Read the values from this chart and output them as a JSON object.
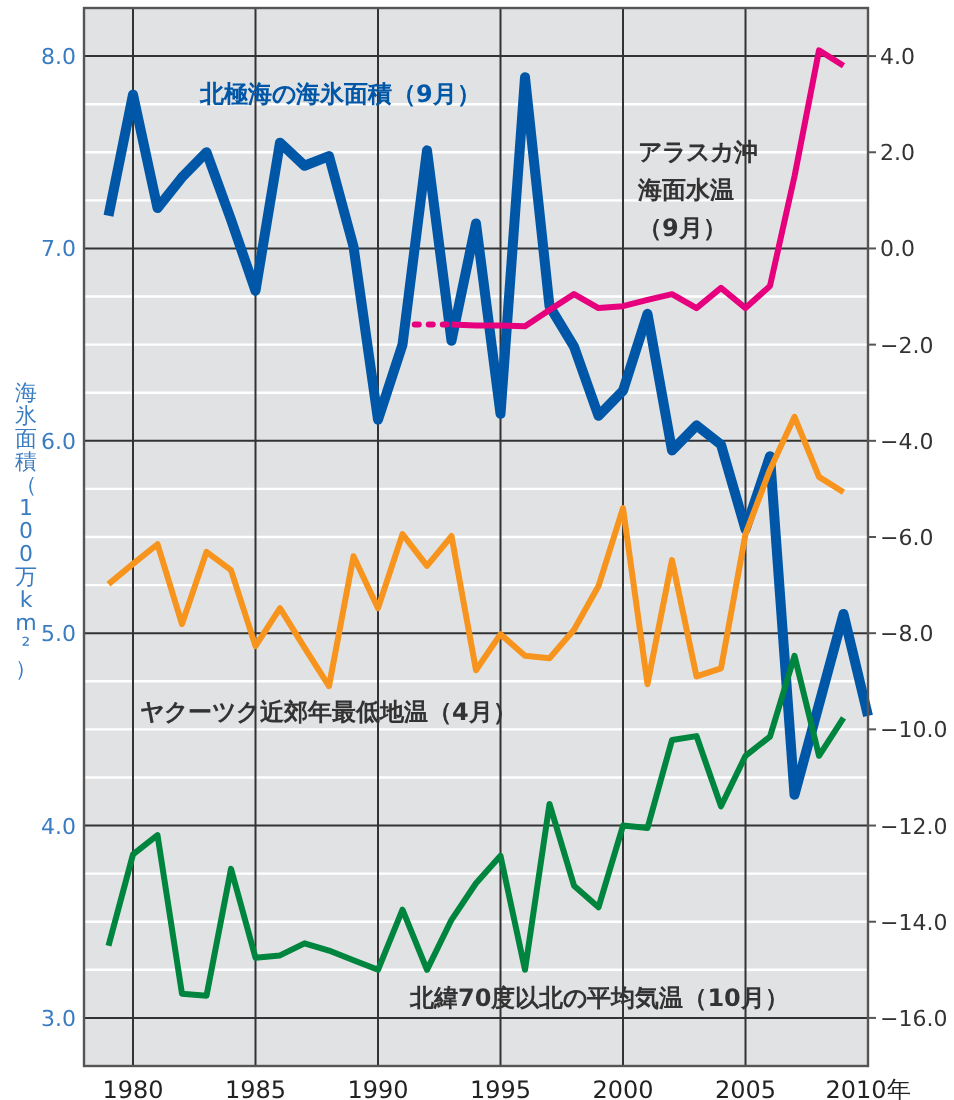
{
  "chart_data": {
    "type": "line",
    "ylabel": "海氷面積（100万km²）",
    "x": [
      1979,
      1980,
      1981,
      1982,
      1983,
      1984,
      1985,
      1986,
      1987,
      1988,
      1989,
      1990,
      1991,
      1992,
      1993,
      1994,
      1995,
      1996,
      1997,
      1998,
      1999,
      2000,
      2001,
      2002,
      2003,
      2004,
      2005,
      2006,
      2007,
      2008,
      2009,
      2010
    ],
    "xlim": [
      1978,
      2010
    ],
    "xticks": [
      1980,
      1985,
      1990,
      1995,
      2000,
      2005,
      {
        "value": 2010,
        "label": "2010年"
      }
    ],
    "ylim": [
      2.75,
      8.25
    ],
    "yticks": [
      {
        "value": 3,
        "label": "3.0"
      },
      {
        "value": 3.25,
        "label": null
      },
      {
        "value": 3.5,
        "label": null
      },
      {
        "value": 3.75,
        "label": null
      },
      {
        "value": 4,
        "label": "4.0"
      },
      {
        "value": 4.25,
        "label": null
      },
      {
        "value": 4.5,
        "label": null
      },
      {
        "value": 4.75,
        "label": null
      },
      {
        "value": 5,
        "label": "5.0"
      },
      {
        "value": 5.25,
        "label": null
      },
      {
        "value": 5.5,
        "label": null
      },
      {
        "value": 5.75,
        "label": null
      },
      {
        "value": 6,
        "label": "6.0"
      },
      {
        "value": 6.25,
        "label": null
      },
      {
        "value": 6.5,
        "label": null
      },
      {
        "value": 6.75,
        "label": null
      },
      {
        "value": 7,
        "label": "7.0"
      },
      {
        "value": 7.25,
        "label": null
      },
      {
        "value": 7.5,
        "label": null
      },
      {
        "value": 7.75,
        "label": null
      },
      {
        "value": 8,
        "label": "8.0"
      }
    ],
    "y2lim": [
      -17,
      5
    ],
    "y2ticks": [
      {
        "value": 4,
        "label": "4.0"
      },
      {
        "value": 2,
        "label": "2.0"
      },
      {
        "value": 0,
        "label": "0.0"
      },
      {
        "value": -2,
        "label": "−2.0"
      },
      {
        "value": -4,
        "label": "−4.0"
      },
      {
        "value": -6,
        "label": "−6.0"
      },
      {
        "value": -8,
        "label": "−8.0"
      },
      {
        "value": -10,
        "label": "−10.0"
      },
      {
        "value": -12,
        "label": "−12.0"
      },
      {
        "value": -14,
        "label": "−14.0"
      },
      {
        "value": -16,
        "label": "−16.0"
      }
    ],
    "grid": true,
    "marker": "none",
    "series": [
      {
        "name": "北極海の海氷面積（9月）",
        "color": "#0057a8",
        "values": [
          7.17,
          7.8,
          7.21,
          7.37,
          7.5,
          7.15,
          6.78,
          7.55,
          7.43,
          7.48,
          7.01,
          6.11,
          6.5,
          7.51,
          6.52,
          7.13,
          6.14,
          7.89,
          6.7,
          6.49,
          6.13,
          6.26,
          6.66,
          5.95,
          6.08,
          5.98,
          5.54,
          5.92,
          4.16,
          4.63,
          5.1,
          4.57
        ]
      },
      {
        "color": "#e6007e",
        "axis": "y2",
        "line_style": "dotted",
        "x": [
          1991.5,
          1993
        ],
        "values": [
          -1.58,
          -1.58
        ]
      },
      {
        "name": "アラスカ沖海面水温（9月）",
        "color": "#e6007e",
        "axis": "y2",
        "x": [
          1993,
          1994,
          1995,
          1996,
          1997,
          1998,
          1999,
          2000,
          2001,
          2002,
          2003,
          2004,
          2005,
          2006,
          2007,
          2008,
          2009
        ],
        "values": [
          -1.58,
          -1.6,
          -1.6,
          -1.62,
          -1.28,
          -0.95,
          -1.24,
          -1.2,
          -1.07,
          -0.95,
          -1.24,
          -0.82,
          -1.24,
          -0.78,
          1.5,
          4.12,
          3.8
        ]
      },
      {
        "name": "ヤクーツク近郊年最低地温（4月）",
        "color": "#f7941d",
        "axis": "y2",
        "x": [
          1979,
          1980,
          1981,
          1982,
          1983,
          1984,
          1985,
          1986,
          1987,
          1988,
          1989,
          1990,
          1991,
          1992,
          1993,
          1994,
          1995,
          1996,
          1997,
          1998,
          1999,
          2000,
          2001,
          2002,
          2003,
          2004,
          2005,
          2006,
          2007,
          2008,
          2009
        ],
        "values": [
          -6.98,
          -6.56,
          -6.15,
          -7.81,
          -6.31,
          -6.69,
          -8.27,
          -7.48,
          -8.3,
          -9.1,
          -6.4,
          -7.48,
          -5.94,
          -6.6,
          -5.98,
          -8.77,
          -8.02,
          -8.47,
          -8.52,
          -7.93,
          -7.02,
          -5.4,
          -9.06,
          -6.48,
          -8.9,
          -8.73,
          -5.94,
          -4.6,
          -3.5,
          -4.75,
          -5.07
        ]
      },
      {
        "name": "北緯70度以北の平均気温（10月）",
        "color": "#00853e",
        "axis": "y2",
        "x": [
          1979,
          1980,
          1981,
          1982,
          1983,
          1984,
          1985,
          1986,
          1987,
          1988,
          1989,
          1990,
          1991,
          1992,
          1993,
          1994,
          1995,
          1996,
          1997,
          1998,
          1999,
          2000,
          2001,
          2002,
          2003,
          2004,
          2005,
          2006,
          2007,
          2008,
          2009
        ],
        "values": [
          -14.5,
          -12.6,
          -12.2,
          -15.5,
          -15.54,
          -12.9,
          -14.75,
          -14.7,
          -14.45,
          -14.6,
          -14.8,
          -15.0,
          -13.75,
          -15.0,
          -13.96,
          -13.2,
          -12.63,
          -15.0,
          -11.55,
          -13.25,
          -13.7,
          -12.0,
          -12.05,
          -10.22,
          -10.14,
          -11.6,
          -10.55,
          -10.15,
          -8.47,
          -10.55,
          -9.76
        ]
      }
    ]
  }
}
